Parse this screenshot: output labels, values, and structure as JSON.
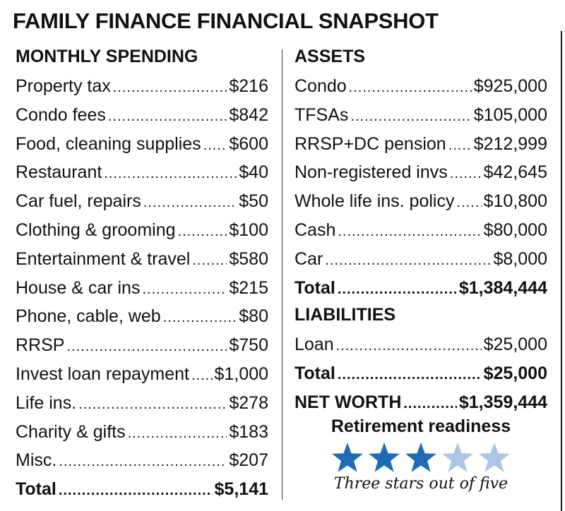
{
  "title": "FAMILY FINANCE FINANCIAL SNAPSHOT",
  "spending": {
    "heading": "MONTHLY SPENDING",
    "items": [
      {
        "label": "Property tax",
        "value": "$216"
      },
      {
        "label": "Condo fees",
        "value": "$842"
      },
      {
        "label": "Food, cleaning supplies",
        "value": "$600"
      },
      {
        "label": "Restaurant",
        "value": "$40"
      },
      {
        "label": "Car fuel, repairs",
        "value": "$50"
      },
      {
        "label": "Clothing & grooming",
        "value": "$100"
      },
      {
        "label": "Entertainment & travel",
        "value": "$580"
      },
      {
        "label": "House & car ins",
        "value": "$215"
      },
      {
        "label": "Phone, cable, web",
        "value": "$80"
      },
      {
        "label": "RRSP",
        "value": "$750"
      },
      {
        "label": "Invest loan repayment",
        "value": "$1,000"
      },
      {
        "label": "Life ins.",
        "value": "$278"
      },
      {
        "label": "Charity & gifts",
        "value": "$183"
      },
      {
        "label": "Misc.",
        "value": "$207"
      }
    ],
    "total": {
      "label": "Total",
      "value": "$5,141"
    }
  },
  "assets": {
    "heading": "ASSETS",
    "items": [
      {
        "label": "Condo",
        "value": "$925,000"
      },
      {
        "label": "TFSAs",
        "value": "$105,000"
      },
      {
        "label": "RRSP+DC pension",
        "value": "$212,999"
      },
      {
        "label": "Non-registered invs",
        "value": "$42,645"
      },
      {
        "label": "Whole life ins. policy",
        "value": "$10,800"
      },
      {
        "label": "Cash",
        "value": "$80,000"
      },
      {
        "label": "Car",
        "value": "$8,000"
      }
    ],
    "total": {
      "label": "Total",
      "value": "$1,384,444"
    }
  },
  "liabilities": {
    "heading": "LIABILITIES",
    "items": [
      {
        "label": "Loan",
        "value": "$25,000"
      }
    ],
    "total": {
      "label": "Total",
      "value": "$25,000"
    }
  },
  "net_worth": {
    "label": "NET WORTH",
    "value": "$1,359,444"
  },
  "retirement": {
    "title": "Retirement readiness",
    "stars_filled": 3,
    "stars_total": 5,
    "caption": "Three stars out of five",
    "colors": {
      "filled": "#1f6bb5",
      "empty": "#a9c6e8"
    }
  }
}
